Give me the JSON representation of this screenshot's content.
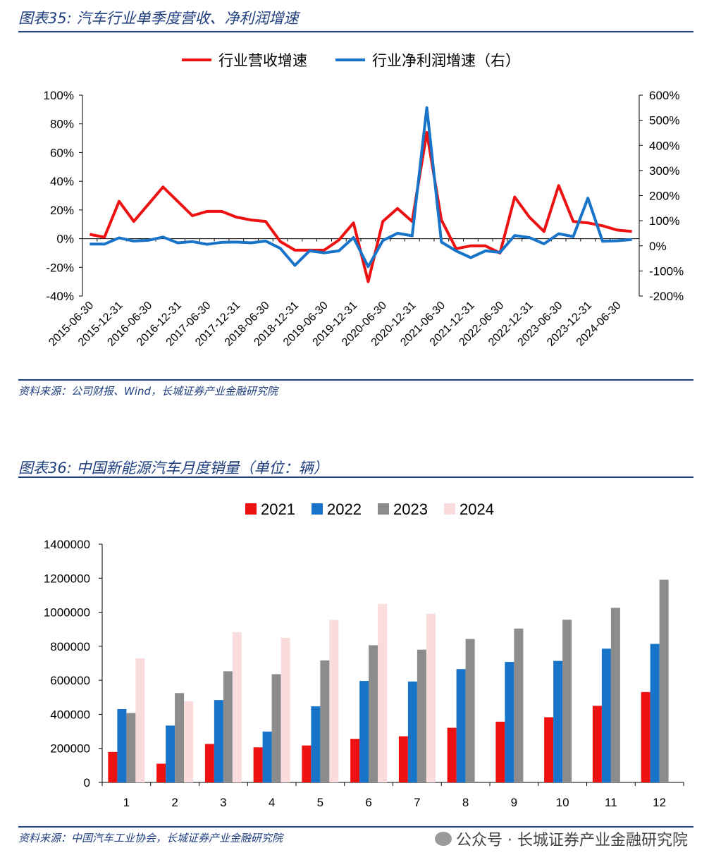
{
  "chart1": {
    "title": "图表35:  汽车行业单季度营收、净利润增速",
    "source": "资料来源：公司财报、Wind，长城证券产业金融研究院",
    "chart_data": {
      "type": "line",
      "x": [
        "2015-06-30",
        "2015-09-30",
        "2015-12-31",
        "2016-03-31",
        "2016-06-30",
        "2016-09-30",
        "2016-12-31",
        "2017-03-31",
        "2017-06-30",
        "2017-09-30",
        "2017-12-31",
        "2018-03-31",
        "2018-06-30",
        "2018-09-30",
        "2018-12-31",
        "2019-03-31",
        "2019-06-30",
        "2019-09-30",
        "2019-12-31",
        "2020-03-31",
        "2020-06-30",
        "2020-09-30",
        "2020-12-31",
        "2021-03-31",
        "2021-06-30",
        "2021-09-30",
        "2021-12-31",
        "2022-03-31",
        "2022-06-30",
        "2022-09-30",
        "2022-12-31",
        "2023-03-31",
        "2023-06-30",
        "2023-09-30",
        "2023-12-31",
        "2024-03-31",
        "2024-06-30",
        "2024-09-30"
      ],
      "xticklabels": [
        "2015-06-30",
        "2015-12-31",
        "2016-06-30",
        "2016-12-31",
        "2017-06-30",
        "2017-12-31",
        "2018-06-30",
        "2018-12-31",
        "2019-06-30",
        "2019-12-31",
        "2020-06-30",
        "2020-12-31",
        "2021-06-30",
        "2021-12-31",
        "2022-06-30",
        "2022-12-31",
        "2023-06-30",
        "2023-12-31",
        "2024-06-30"
      ],
      "series": [
        {
          "name": "行业营收增速",
          "axis": "left",
          "color": "#ee1111",
          "values": [
            3,
            1,
            26,
            12,
            24,
            36,
            26,
            16,
            19,
            19,
            15,
            13,
            12,
            -2,
            -8,
            -8,
            -8,
            -1,
            11,
            -30,
            12,
            21,
            12,
            74,
            13,
            -7,
            -5,
            -5,
            -10,
            29,
            15,
            5,
            37,
            12,
            11,
            9,
            6,
            5
          ]
        },
        {
          "name": "行业净利润增速（右）",
          "axis": "right",
          "color": "#1874c8",
          "values": [
            7,
            7,
            32,
            19,
            22,
            35,
            12,
            17,
            6,
            14,
            15,
            12,
            19,
            -10,
            -78,
            -20,
            -28,
            -20,
            33,
            -83,
            21,
            50,
            40,
            550,
            15,
            -20,
            -47,
            -20,
            -26,
            41,
            33,
            8,
            48,
            37,
            190,
            18,
            20,
            25
          ]
        }
      ],
      "yleft": {
        "min": -40,
        "max": 100,
        "step": 20,
        "unit": "%"
      },
      "yright": {
        "min": -200,
        "max": 600,
        "step": 100,
        "unit": "%"
      },
      "legend_position": "top-center"
    }
  },
  "chart2": {
    "title": "图表36:  中国新能源汽车月度销量（单位：辆）",
    "source": "资料来源：中国汽车工业协会，长城证券产业金融研究院",
    "chart_data": {
      "type": "bar",
      "categories": [
        "1",
        "2",
        "3",
        "4",
        "5",
        "6",
        "7",
        "8",
        "9",
        "10",
        "11",
        "12"
      ],
      "series": [
        {
          "name": "2021",
          "color": "#ee1111",
          "values": [
            179000,
            110000,
            226000,
            206000,
            217000,
            256000,
            271000,
            321000,
            357000,
            383000,
            450000,
            531000
          ]
        },
        {
          "name": "2022",
          "color": "#1874c8",
          "values": [
            431000,
            334000,
            484000,
            299000,
            447000,
            596000,
            593000,
            666000,
            708000,
            714000,
            786000,
            814000
          ]
        },
        {
          "name": "2023",
          "color": "#8c8c8c",
          "values": [
            408000,
            525000,
            653000,
            636000,
            717000,
            806000,
            780000,
            843000,
            904000,
            956000,
            1026000,
            1191000
          ]
        },
        {
          "name": "2024",
          "color": "#fadcdc",
          "values": [
            729000,
            477000,
            883000,
            850000,
            955000,
            1049000,
            991000,
            null,
            null,
            null,
            null,
            null
          ]
        }
      ],
      "ylim": [
        0,
        1400000
      ],
      "ystep": 200000,
      "legend_position": "top-center"
    }
  },
  "watermark": {
    "icon": "wechat-icon",
    "text": "公众号 · 长城证券产业金融研究院"
  }
}
